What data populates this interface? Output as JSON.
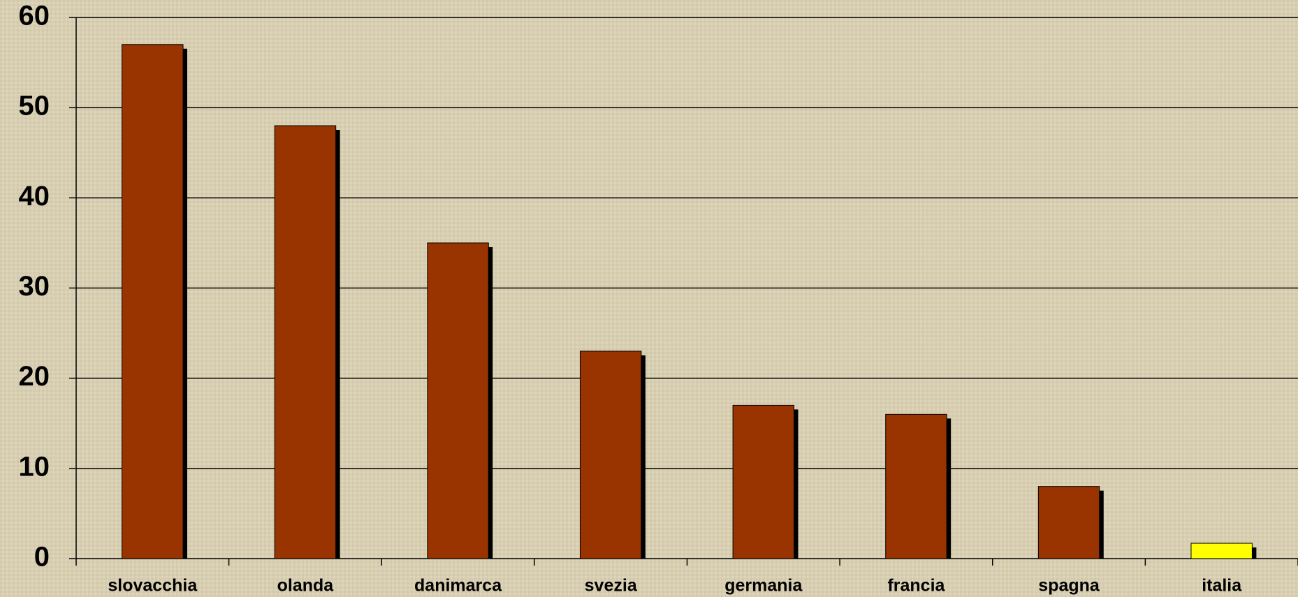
{
  "chart_data": {
    "type": "bar",
    "categories": [
      "slovacchia",
      "olanda",
      "danimarca",
      "svezia",
      "germania",
      "francia",
      "spagna",
      "italia"
    ],
    "values": [
      57,
      48,
      35,
      23,
      17,
      16,
      8,
      1.7
    ],
    "colors": [
      "#993300",
      "#993300",
      "#993300",
      "#993300",
      "#993300",
      "#993300",
      "#993300",
      "#ffff00"
    ],
    "ylim": [
      0,
      60
    ],
    "yticks": [
      0,
      10,
      20,
      30,
      40,
      50,
      60
    ],
    "grid": true
  }
}
